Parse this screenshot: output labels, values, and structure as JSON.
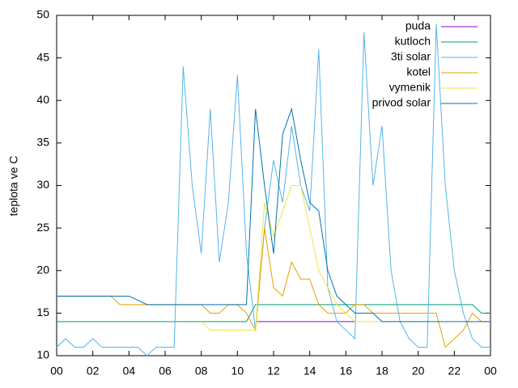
{
  "chart_data": {
    "type": "line",
    "ylabel": "teplota ve C",
    "x": [
      0,
      0.5,
      1,
      1.5,
      2,
      2.5,
      3,
      3.5,
      4,
      4.5,
      5,
      5.5,
      6,
      6.5,
      7,
      7.5,
      8,
      8.5,
      9,
      9.5,
      10,
      10.5,
      11,
      11.5,
      12,
      12.5,
      13,
      13.5,
      14,
      14.5,
      15,
      15.5,
      16,
      16.5,
      17,
      17.5,
      18,
      18.5,
      19,
      19.5,
      20,
      20.5,
      21,
      21.5,
      22,
      22.5,
      23,
      23.5,
      24
    ],
    "xlim": [
      0,
      24
    ],
    "xticks": [
      {
        "value": 0,
        "label": "00"
      },
      {
        "value": 2,
        "label": "02"
      },
      {
        "value": 4,
        "label": "04"
      },
      {
        "value": 6,
        "label": "06"
      },
      {
        "value": 8,
        "label": "08"
      },
      {
        "value": 10,
        "label": "10"
      },
      12,
      14,
      16,
      18,
      20,
      22,
      {
        "value": 24,
        "label": "00"
      }
    ],
    "ylim": [
      10,
      50
    ],
    "yticks": [
      10,
      15,
      20,
      25,
      30,
      35,
      40,
      45,
      50
    ],
    "legend": "top-right",
    "series": [
      {
        "name": "puda",
        "color": "#9400d3",
        "values": [
          null,
          null,
          null,
          null,
          null,
          null,
          null,
          null,
          null,
          null,
          null,
          null,
          null,
          null,
          null,
          null,
          null,
          null,
          null,
          null,
          null,
          null,
          14,
          14,
          14,
          14,
          14,
          14,
          14,
          14,
          14,
          14,
          14,
          14,
          null,
          null,
          null,
          null,
          null,
          null,
          null,
          null,
          null,
          null,
          null,
          null,
          null,
          null,
          null
        ]
      },
      {
        "name": "kutloch",
        "color": "#009e73",
        "values": [
          14,
          14,
          14,
          14,
          14,
          14,
          14,
          14,
          14,
          14,
          14,
          14,
          14,
          14,
          14,
          14,
          14,
          14,
          14,
          14,
          14,
          14,
          16,
          16,
          16,
          16,
          16,
          16,
          16,
          16,
          16,
          16,
          16,
          16,
          16,
          16,
          16,
          16,
          16,
          16,
          16,
          16,
          16,
          16,
          16,
          16,
          16,
          15,
          15
        ]
      },
      {
        "name": "3ti solar",
        "color": "#56b4e9",
        "values": [
          11,
          12,
          11,
          11,
          12,
          11,
          11,
          11,
          11,
          11,
          10,
          11,
          11,
          11,
          44,
          30,
          22,
          39,
          21,
          28,
          43,
          22,
          13,
          25,
          33,
          28,
          37,
          30,
          27,
          46,
          18,
          14,
          13,
          12,
          48,
          30,
          37,
          20,
          14,
          12,
          11,
          11,
          49,
          30,
          20,
          15,
          12,
          11,
          11
        ]
      },
      {
        "name": "kotel",
        "color": "#e69f00",
        "values": [
          17,
          17,
          17,
          17,
          17,
          17,
          17,
          16,
          16,
          16,
          16,
          16,
          16,
          16,
          16,
          16,
          16,
          15,
          15,
          16,
          16,
          15,
          13,
          25,
          18,
          17,
          21,
          19,
          19,
          16,
          15,
          15,
          15,
          16,
          16,
          15,
          15,
          15,
          15,
          15,
          15,
          15,
          15,
          11,
          12,
          13,
          15,
          14,
          14
        ]
      },
      {
        "name": "vymenik",
        "color": "#f0e442",
        "values": [
          null,
          null,
          null,
          null,
          null,
          null,
          null,
          null,
          null,
          null,
          null,
          null,
          null,
          null,
          null,
          null,
          14,
          13,
          13,
          13,
          13,
          13,
          13,
          28,
          24,
          27,
          30,
          30,
          25,
          20,
          18,
          16,
          15,
          14,
          14,
          14,
          14,
          14,
          14,
          14,
          14,
          null,
          null,
          null,
          null,
          null,
          null,
          null,
          null
        ]
      },
      {
        "name": "privod solar",
        "color": "#0072b2",
        "values": [
          17,
          17,
          17,
          17,
          17,
          17,
          17,
          17,
          17,
          16.5,
          16,
          16,
          16,
          16,
          16,
          16,
          16,
          16,
          16,
          16,
          16,
          16,
          39,
          30,
          22,
          36,
          39,
          33,
          28,
          27,
          20,
          17,
          16,
          15,
          15,
          15,
          14,
          14,
          14,
          14,
          14,
          14,
          14,
          14,
          14,
          14,
          14,
          14,
          14
        ]
      }
    ]
  }
}
